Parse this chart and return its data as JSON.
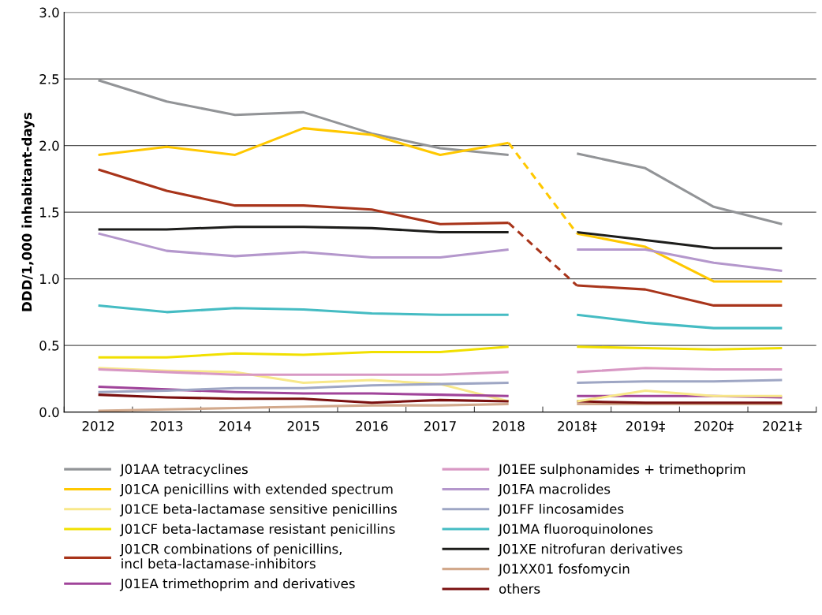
{
  "chart_data": {
    "type": "line",
    "ylabel": "DDD/1,000 inhabitant-days",
    "categories": [
      "2012",
      "2013",
      "2014",
      "2015",
      "2016",
      "2017",
      "2018",
      "2018‡",
      "2019‡",
      "2020‡",
      "2021‡"
    ],
    "ylim": [
      0,
      3
    ],
    "yticks": [
      {
        "value": 0,
        "label": "0.0"
      },
      {
        "value": 0.5,
        "label": "0.5"
      },
      {
        "value": 1,
        "label": "1.0"
      },
      {
        "value": 1.5,
        "label": "1.5"
      },
      {
        "value": 2,
        "label": "2.0"
      },
      {
        "value": 2.5,
        "label": "2.5"
      },
      {
        "value": 3,
        "label": "3.0"
      }
    ],
    "grid": "y",
    "legend": "bottom",
    "marker": "none",
    "line_style": "solid",
    "series": [
      {
        "name": "J01AA tetracyclines",
        "color": "#929497",
        "values": [
          2.49,
          2.33,
          2.23,
          2.25,
          2.09,
          1.98,
          1.93,
          null,
          null,
          null,
          null
        ]
      },
      {
        "name": "J01CA penicillins with extended spectrum",
        "color": "#ffc800",
        "values": [
          1.93,
          1.99,
          1.93,
          2.13,
          2.08,
          1.93,
          2.02,
          null,
          null,
          null,
          null
        ]
      },
      {
        "name": "J01CE beta-lactamase sensitive penicillins",
        "color": "#f8e88a",
        "values": [
          0.33,
          0.31,
          0.3,
          0.22,
          0.24,
          0.21,
          0.08,
          null,
          null,
          null,
          null
        ]
      },
      {
        "name": "J01CF beta-lactamase resistant penicillins",
        "color": "#f1e000",
        "values": [
          0.41,
          0.41,
          0.44,
          0.43,
          0.45,
          0.45,
          0.49,
          null,
          null,
          null,
          null
        ]
      },
      {
        "name": "J01CR combinations of penicillins,\nincl beta-lactamase-inhibitors",
        "color": "#a8341a",
        "values": [
          1.82,
          1.66,
          1.55,
          1.55,
          1.52,
          1.41,
          1.42,
          null,
          null,
          null,
          null
        ]
      },
      {
        "name": "J01EA trimethoprim and derivatives",
        "color": "#a0449a",
        "values": [
          0.19,
          0.17,
          0.15,
          0.14,
          0.14,
          0.13,
          0.12,
          null,
          null,
          null,
          null
        ]
      },
      {
        "name": "J01EE sulphonamides + trimethoprim",
        "color": "#d898c4",
        "values": [
          0.32,
          0.3,
          0.28,
          0.28,
          0.28,
          0.28,
          0.3,
          null,
          null,
          null,
          null
        ]
      },
      {
        "name": "J01FA macrolides",
        "color": "#b497cc",
        "values": [
          1.34,
          1.21,
          1.17,
          1.2,
          1.16,
          1.16,
          1.22,
          null,
          null,
          null,
          null
        ]
      },
      {
        "name": "J01FF lincosamides",
        "color": "#9ea6c4",
        "values": [
          0.15,
          0.16,
          0.18,
          0.18,
          0.2,
          0.21,
          0.22,
          null,
          null,
          null,
          null
        ]
      },
      {
        "name": "J01MA fluoroquinolones",
        "color": "#45bcc3",
        "values": [
          0.8,
          0.75,
          0.78,
          0.77,
          0.74,
          0.73,
          0.73,
          null,
          null,
          null,
          null
        ]
      },
      {
        "name": "J01XE nitrofuran derivatives",
        "color": "#1d1d1b",
        "values": [
          1.37,
          1.37,
          1.39,
          1.39,
          1.38,
          1.35,
          1.35,
          null,
          null,
          null,
          null
        ]
      },
      {
        "name": "J01XX01 fosfomycin",
        "color": "#d2a98c",
        "values": [
          0.01,
          0.02,
          0.03,
          0.04,
          0.05,
          0.05,
          0.06,
          null,
          null,
          null,
          null
        ]
      },
      {
        "name": "others",
        "color": "#7a1010",
        "values": [
          0.13,
          0.11,
          0.1,
          0.1,
          0.07,
          0.09,
          0.08,
          null,
          null,
          null,
          null
        ]
      },
      {
        "color": "#929497",
        "values": [
          null,
          null,
          null,
          null,
          null,
          null,
          null,
          1.94,
          1.83,
          1.54,
          1.41
        ]
      },
      {
        "color": "#ffc800",
        "values": [
          null,
          null,
          null,
          null,
          null,
          null,
          null,
          1.34,
          1.24,
          0.98,
          0.98
        ]
      },
      {
        "color": "#f1e000",
        "values": [
          null,
          null,
          null,
          null,
          null,
          null,
          null,
          0.49,
          0.48,
          0.47,
          0.48
        ]
      },
      {
        "color": "#a8341a",
        "values": [
          null,
          null,
          null,
          null,
          null,
          null,
          null,
          0.95,
          0.92,
          0.8,
          0.8
        ]
      },
      {
        "color": "#a0449a",
        "values": [
          null,
          null,
          null,
          null,
          null,
          null,
          null,
          0.12,
          0.12,
          0.12,
          0.11
        ]
      },
      {
        "color": "#d898c4",
        "values": [
          null,
          null,
          null,
          null,
          null,
          null,
          null,
          0.3,
          0.33,
          0.32,
          0.32
        ]
      },
      {
        "color": "#b497cc",
        "values": [
          null,
          null,
          null,
          null,
          null,
          null,
          null,
          1.22,
          1.22,
          1.12,
          1.06
        ]
      },
      {
        "color": "#9ea6c4",
        "values": [
          null,
          null,
          null,
          null,
          null,
          null,
          null,
          0.22,
          0.23,
          0.23,
          0.24
        ]
      },
      {
        "color": "#45bcc3",
        "values": [
          null,
          null,
          null,
          null,
          null,
          null,
          null,
          0.73,
          0.67,
          0.63,
          0.63
        ]
      },
      {
        "color": "#1d1d1b",
        "values": [
          null,
          null,
          null,
          null,
          null,
          null,
          null,
          1.35,
          1.29,
          1.23,
          1.23
        ]
      },
      {
        "color": "#d2a98c",
        "values": [
          null,
          null,
          null,
          null,
          null,
          null,
          null,
          0.06,
          0.06,
          0.06,
          0.06
        ]
      },
      {
        "color": "#7a1010",
        "values": [
          null,
          null,
          null,
          null,
          null,
          null,
          null,
          0.08,
          0.07,
          0.07,
          0.07
        ]
      },
      {
        "color": "#f8e88a",
        "values": [
          null,
          null,
          null,
          null,
          null,
          null,
          null,
          0.08,
          0.16,
          0.12,
          0.12
        ]
      },
      {
        "color": "#ffc800",
        "line_style": "dashed",
        "values": [
          null,
          null,
          null,
          null,
          null,
          null,
          2.02,
          1.34,
          null,
          null,
          null
        ]
      },
      {
        "color": "#a8341a",
        "line_style": "dashed",
        "values": [
          null,
          null,
          null,
          null,
          null,
          null,
          1.42,
          0.95,
          null,
          null,
          null
        ]
      }
    ]
  }
}
